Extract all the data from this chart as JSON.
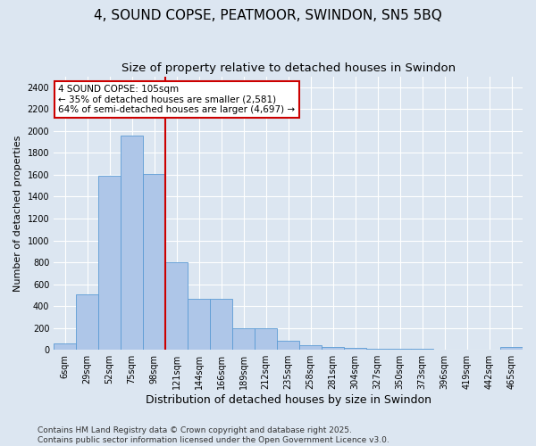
{
  "title1": "4, SOUND COPSE, PEATMOOR, SWINDON, SN5 5BQ",
  "title2": "Size of property relative to detached houses in Swindon",
  "xlabel": "Distribution of detached houses by size in Swindon",
  "ylabel": "Number of detached properties",
  "bar_labels": [
    "6sqm",
    "29sqm",
    "52sqm",
    "75sqm",
    "98sqm",
    "121sqm",
    "144sqm",
    "166sqm",
    "189sqm",
    "212sqm",
    "235sqm",
    "258sqm",
    "281sqm",
    "304sqm",
    "327sqm",
    "350sqm",
    "373sqm",
    "396sqm",
    "419sqm",
    "442sqm",
    "465sqm"
  ],
  "bar_values": [
    55,
    510,
    1590,
    1960,
    1610,
    800,
    470,
    470,
    195,
    195,
    85,
    40,
    30,
    20,
    10,
    10,
    10,
    0,
    0,
    0,
    25
  ],
  "bar_color": "#aec6e8",
  "bar_edge_color": "#5b9bd5",
  "annotation_text": "4 SOUND COPSE: 105sqm\n← 35% of detached houses are smaller (2,581)\n64% of semi-detached houses are larger (4,697) →",
  "vline_color": "#cc0000",
  "annotation_box_color": "#cc0000",
  "vline_x": 3.5,
  "ylim": [
    0,
    2500
  ],
  "yticks": [
    0,
    200,
    400,
    600,
    800,
    1000,
    1200,
    1400,
    1600,
    1800,
    2000,
    2200,
    2400
  ],
  "bg_color": "#dce6f1",
  "plot_bg_color": "#dce6f1",
  "footer1": "Contains HM Land Registry data © Crown copyright and database right 2025.",
  "footer2": "Contains public sector information licensed under the Open Government Licence v3.0.",
  "title1_fontsize": 11,
  "title2_fontsize": 9.5,
  "xlabel_fontsize": 9,
  "ylabel_fontsize": 8,
  "tick_fontsize": 7,
  "footer_fontsize": 6.5,
  "annotation_fontsize": 7.5
}
